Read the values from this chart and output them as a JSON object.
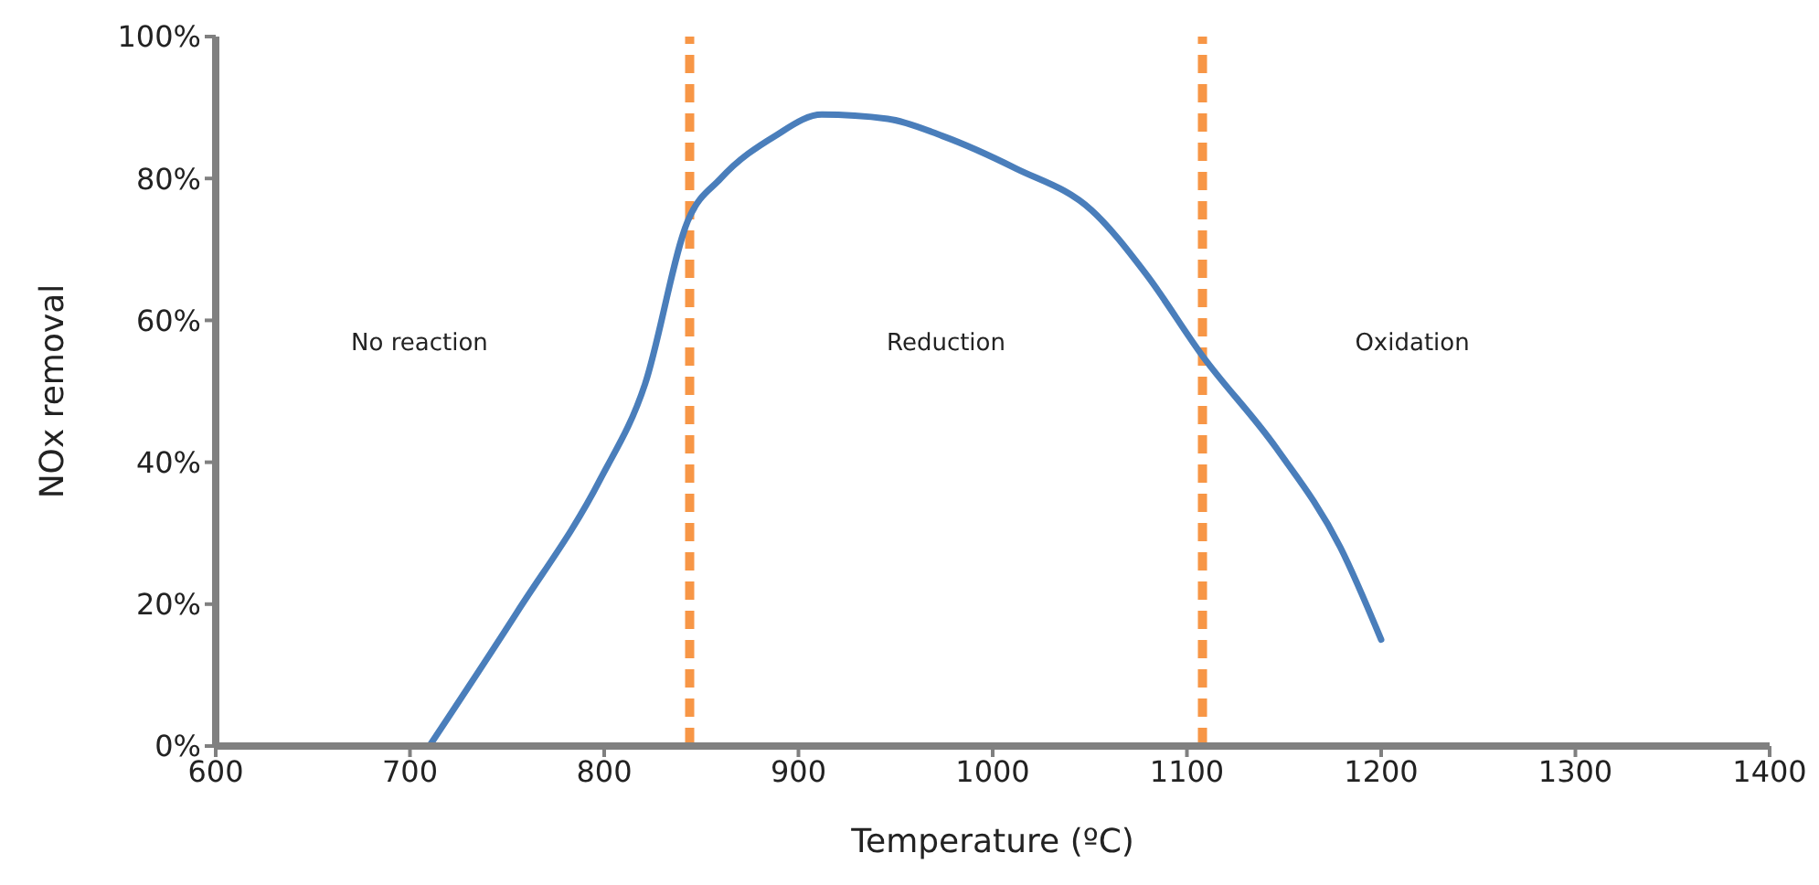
{
  "chart_data": {
    "type": "line",
    "xlabel": "Temperature (ºC)",
    "ylabel": "NOx removal",
    "x": [
      710,
      755,
      798,
      821,
      843,
      860,
      888,
      912,
      946,
      974,
      1012,
      1051,
      1079,
      1108,
      1146,
      1179,
      1200
    ],
    "series": [
      {
        "color": "#4a7ebb",
        "values": [
          0,
          18.8,
          37.6,
          51,
          74,
          80,
          86,
          89,
          88.4,
          86,
          81.4,
          75.5,
          66.5,
          55,
          42,
          28,
          15
        ]
      }
    ],
    "xlim": [
      600,
      1400
    ],
    "xticks": [
      600,
      700,
      800,
      900,
      1000,
      1100,
      1200,
      1300,
      1400
    ],
    "ylim": [
      0,
      100
    ],
    "yticks": [
      {
        "value": 0,
        "label": "0%"
      },
      {
        "value": 20,
        "label": "20%"
      },
      {
        "value": 40,
        "label": "40%"
      },
      {
        "value": 60,
        "label": "60%"
      },
      {
        "value": 80,
        "label": "80%"
      },
      {
        "value": 100,
        "label": "100%"
      }
    ],
    "ref_lines": [
      {
        "axis": "x",
        "value": 844,
        "color": "#f79646",
        "line_style": "dashed"
      },
      {
        "axis": "x",
        "value": 1108,
        "color": "#f79646",
        "line_style": "dashed"
      }
    ],
    "annotations": [
      "No reaction",
      "Reduction",
      "Oxidation"
    ],
    "grid": false,
    "legend": false,
    "marker": "none",
    "line_style": "solid"
  }
}
